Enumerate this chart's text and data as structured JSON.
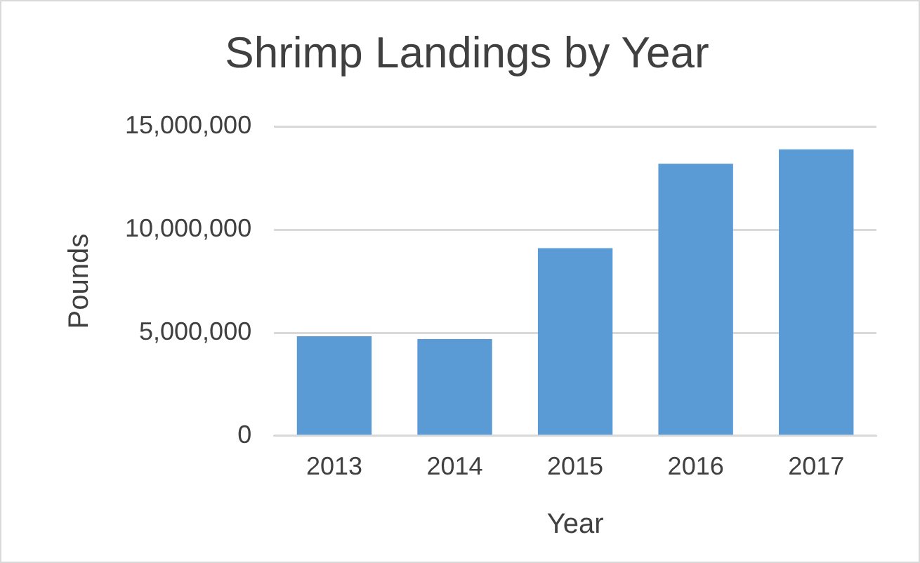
{
  "chart_data": {
    "type": "bar",
    "title": "Shrimp Landings by Year",
    "xlabel": "Year",
    "ylabel": "Pounds",
    "categories": [
      "2013",
      "2014",
      "2015",
      "2016",
      "2017"
    ],
    "values": [
      4830000,
      4690000,
      9100000,
      13200000,
      13900000
    ],
    "color": "#5b9bd5",
    "ylim": [
      0,
      15000000
    ],
    "yticks": [
      {
        "value": 0,
        "label": "0"
      },
      {
        "value": 5000000,
        "label": "5,000,000"
      },
      {
        "value": 10000000,
        "label": "10,000,000"
      },
      {
        "value": 15000000,
        "label": "15,000,000"
      }
    ],
    "grid": "y"
  }
}
